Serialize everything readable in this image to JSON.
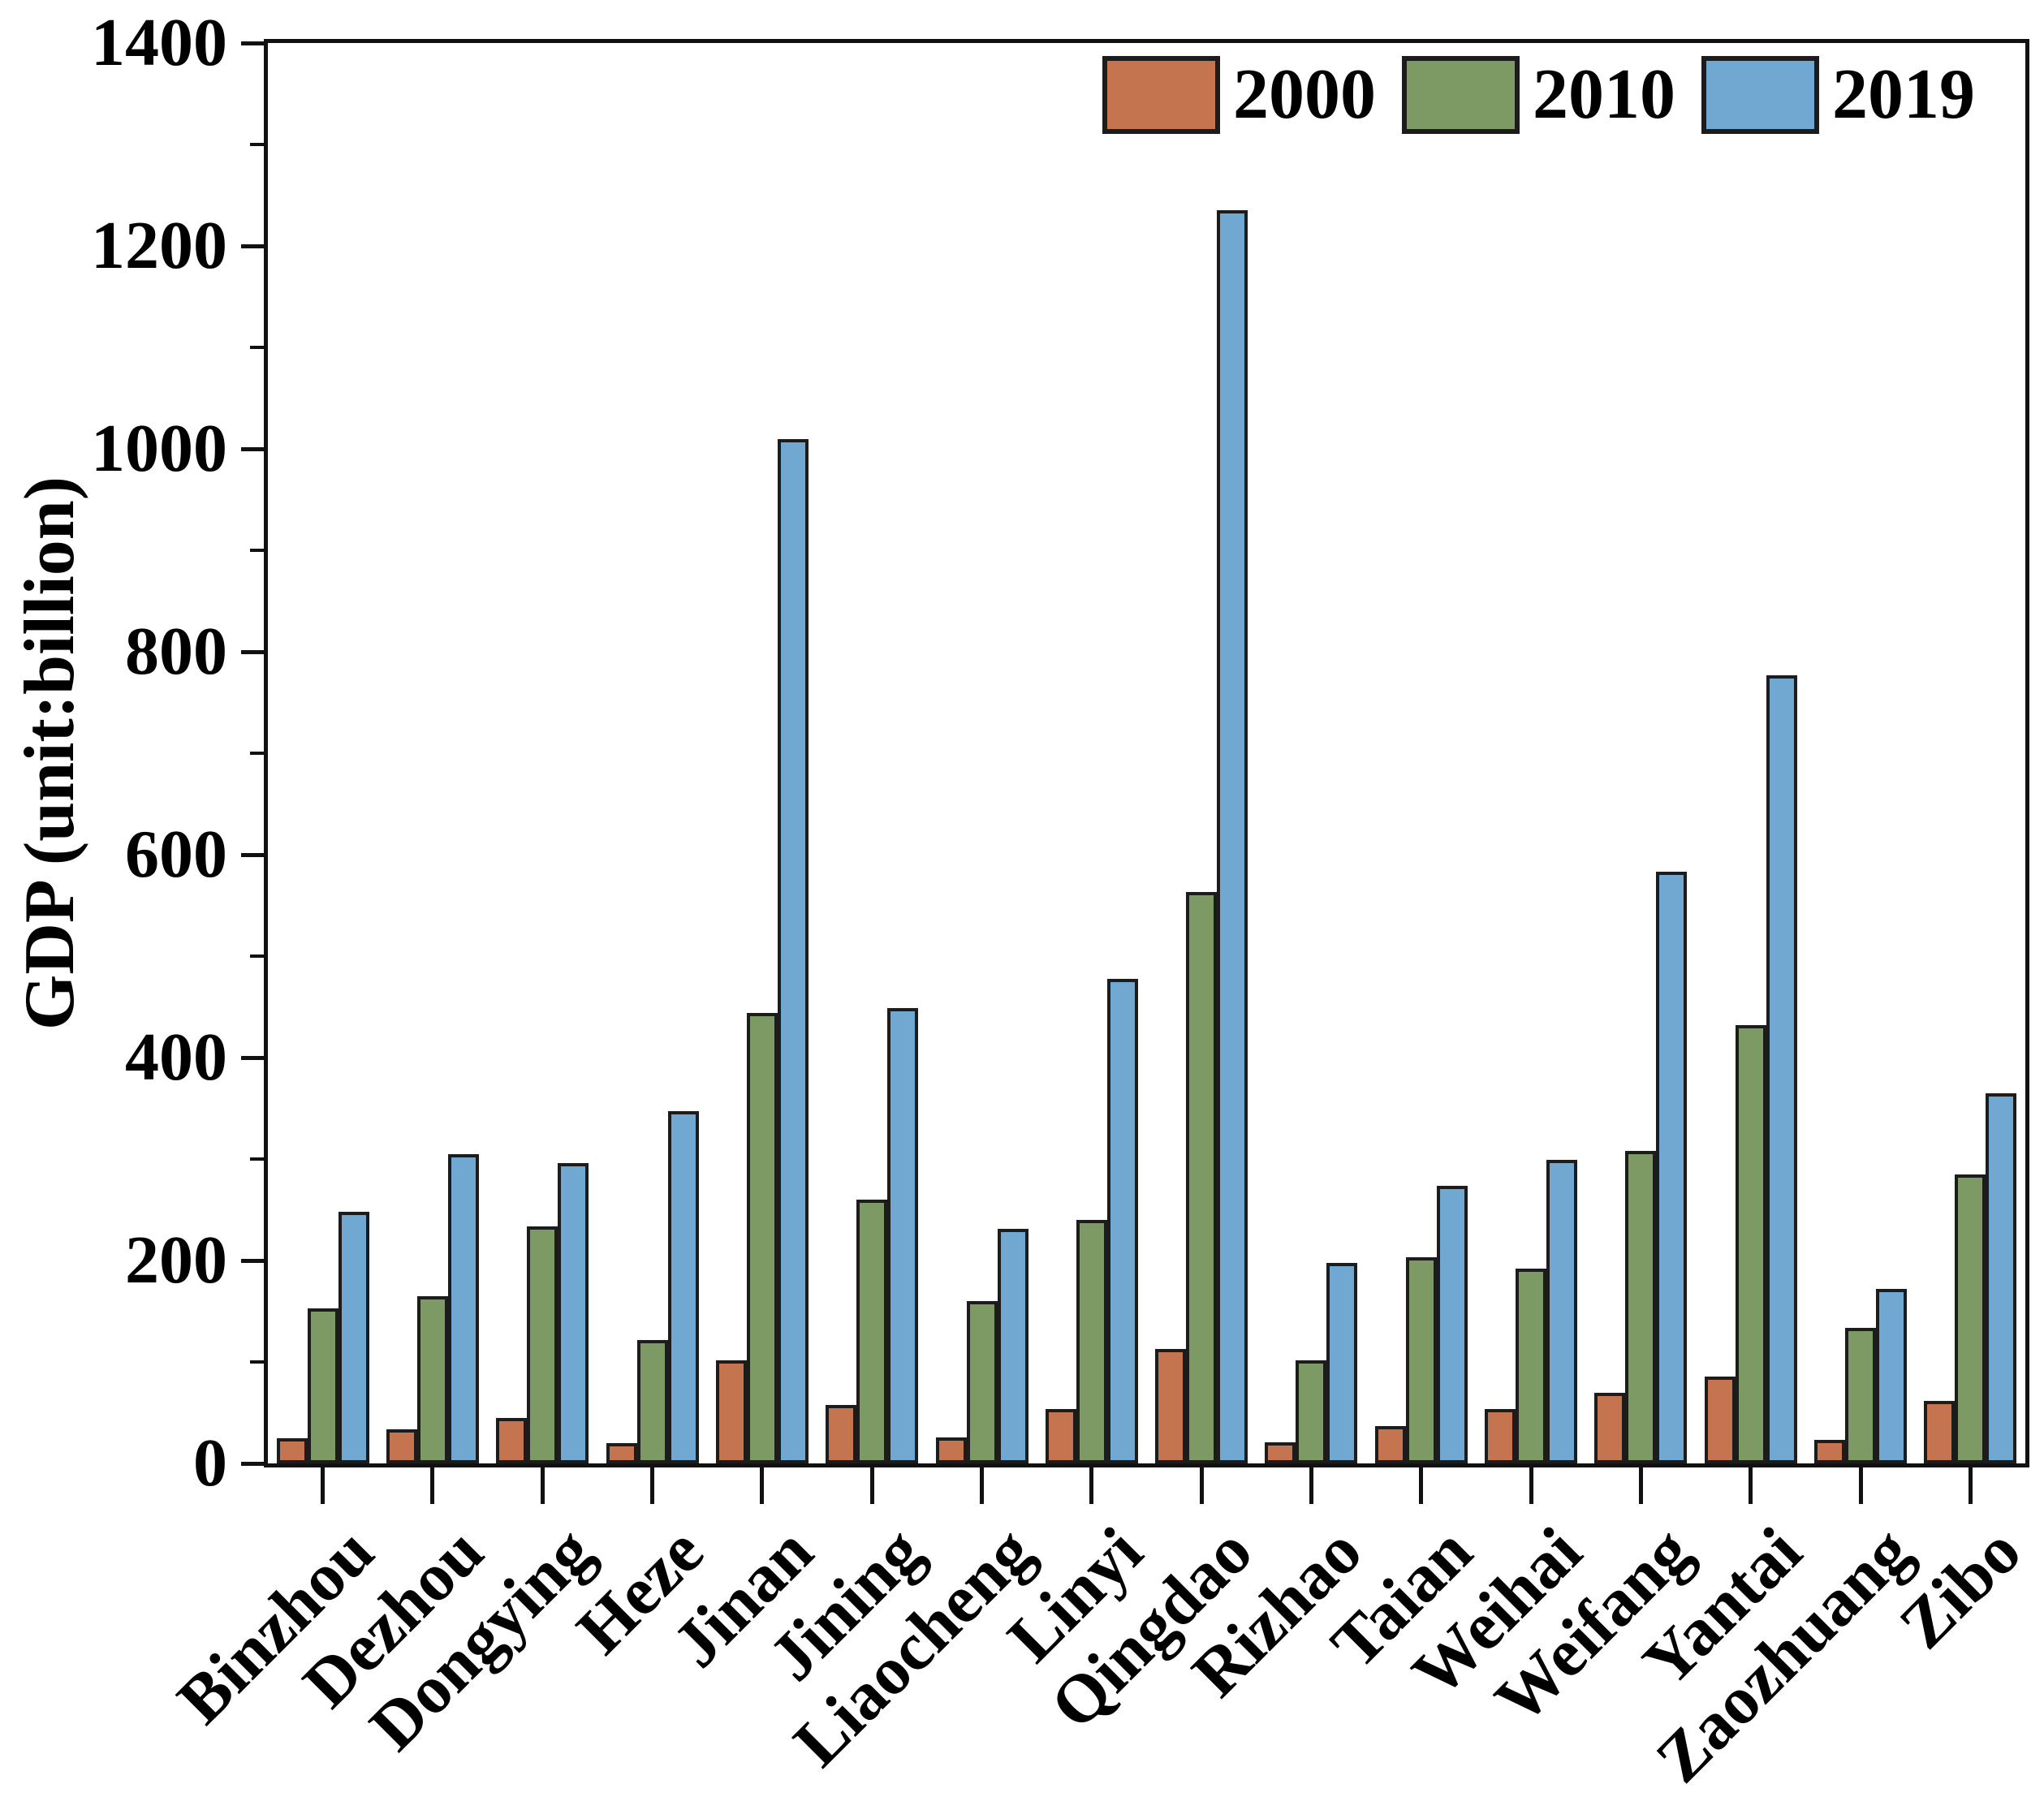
{
  "chart_data": {
    "type": "bar",
    "title": "",
    "xlabel": "",
    "ylabel": "GDP (unit:billion)",
    "ylim": [
      0,
      1400
    ],
    "y_major_ticks": [
      0,
      200,
      400,
      600,
      800,
      1000,
      1200,
      1400
    ],
    "y_minor_tick_step": 100,
    "grid": false,
    "legend_position": "top-right-inside",
    "x_tick_label_rotation_deg": 45,
    "categories": [
      "Binzhou",
      "Dezhou",
      "Dongying",
      "Heze",
      "Jinan",
      "Jining",
      "Liaocheng",
      "Linyi",
      "Qingdao",
      "Rizhao",
      "Taian",
      "Weihai",
      "Weifang",
      "Yantai",
      "Zaozhuang",
      "Zibo"
    ],
    "series": [
      {
        "name": "2000",
        "color": "#C4744F",
        "values": [
          25,
          34,
          45,
          20,
          102,
          58,
          26,
          54,
          113,
          21,
          37,
          54,
          70,
          86,
          23,
          62
        ]
      },
      {
        "name": "2010",
        "color": "#7D9A64",
        "values": [
          153,
          165,
          234,
          122,
          444,
          260,
          160,
          240,
          563,
          102,
          203,
          192,
          308,
          432,
          134,
          285
        ]
      },
      {
        "name": "2019",
        "color": "#70A8D2",
        "values": [
          248,
          305,
          296,
          347,
          1010,
          449,
          231,
          478,
          1235,
          198,
          274,
          299,
          583,
          777,
          172,
          365
        ]
      }
    ],
    "axis_color": "#111111",
    "bar_border_color": "#1c1c1c"
  }
}
